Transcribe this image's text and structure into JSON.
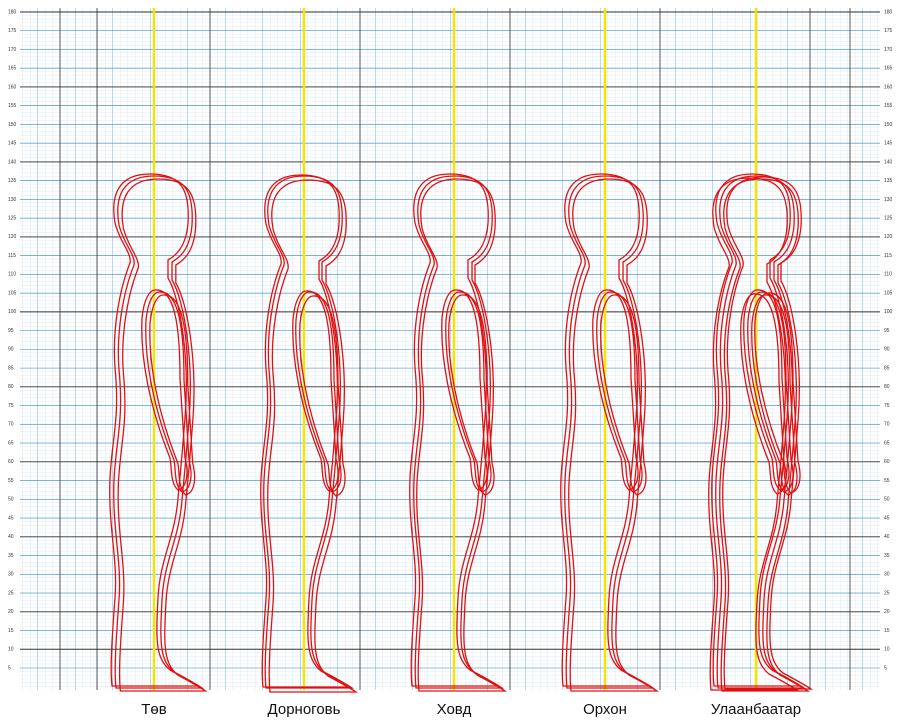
{
  "y_axis_ticks": [
    180,
    175,
    170,
    165,
    160,
    155,
    150,
    145,
    140,
    135,
    130,
    125,
    120,
    115,
    110,
    105,
    100,
    95,
    90,
    85,
    80,
    75,
    70,
    65,
    60,
    55,
    50,
    45,
    40,
    35,
    30,
    25,
    20,
    15,
    10,
    5
  ],
  "labels": [
    "Төв",
    "Дорноговь",
    "Ховд",
    "Орхон",
    "Улаанбаатар"
  ]
}
